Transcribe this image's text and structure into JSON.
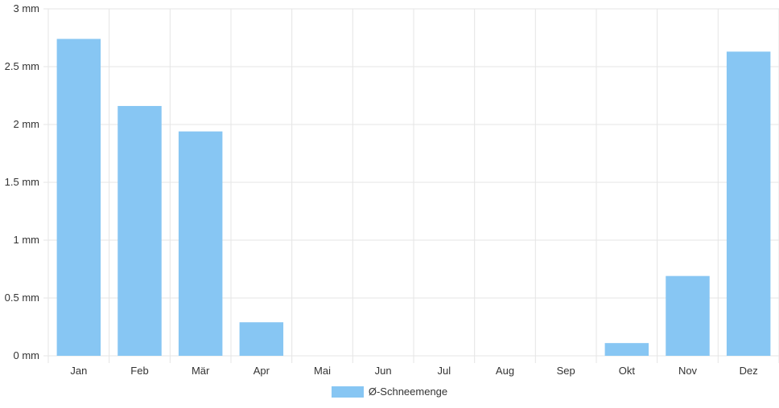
{
  "chart_data": {
    "type": "bar",
    "categories": [
      "Jan",
      "Feb",
      "Mär",
      "Apr",
      "Mai",
      "Jun",
      "Jul",
      "Aug",
      "Sep",
      "Okt",
      "Nov",
      "Dez"
    ],
    "series": [
      {
        "name": "Ø-Schneemenge",
        "values": [
          2.74,
          2.16,
          1.94,
          0.29,
          0,
          0,
          0,
          0,
          0,
          0.11,
          0.69,
          2.63
        ]
      }
    ],
    "ylim": [
      0,
      3
    ],
    "yticks": [
      0,
      0.5,
      1,
      1.5,
      2,
      2.5,
      3
    ],
    "ytick_labels": [
      "0 mm",
      "0.5 mm",
      "1 mm",
      "1.5 mm",
      "2 mm",
      "2.5 mm",
      "3 mm"
    ],
    "grid": true,
    "legend_position": "bottom",
    "colors": {
      "bar": "#87c6f3",
      "grid": "#e5e5e5",
      "text": "#333333"
    }
  }
}
